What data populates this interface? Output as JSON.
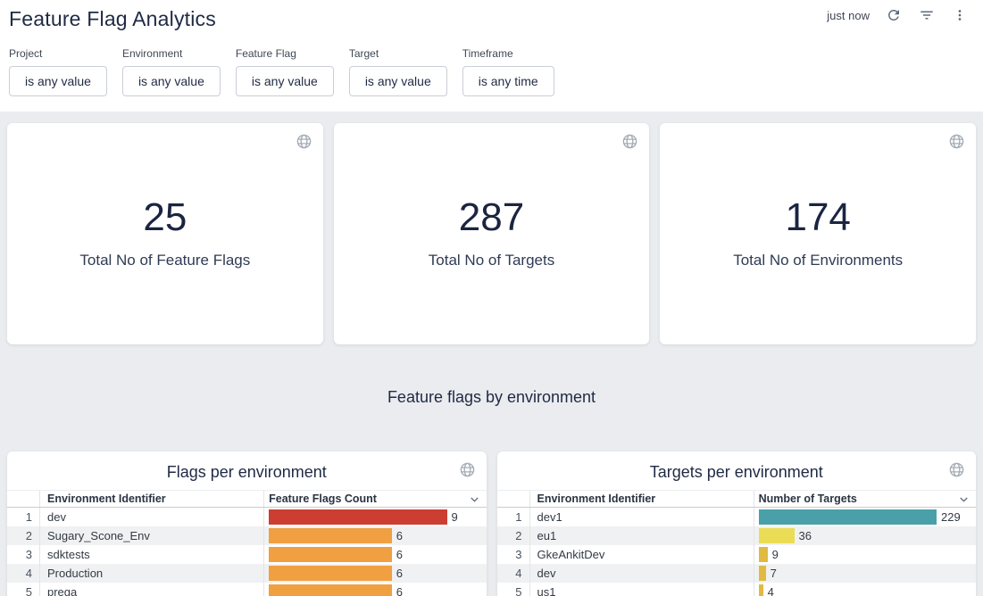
{
  "header": {
    "title": "Feature Flag Analytics",
    "last_refresh": "just now",
    "icons": [
      "refresh-icon",
      "filter-list-icon",
      "kebab-menu-icon"
    ]
  },
  "filters": [
    {
      "label": "Project",
      "value": "is any value"
    },
    {
      "label": "Environment",
      "value": "is any value"
    },
    {
      "label": "Feature Flag",
      "value": "is any value"
    },
    {
      "label": "Target",
      "value": "is any value"
    },
    {
      "label": "Timeframe",
      "value": "is any time"
    }
  ],
  "stats": [
    {
      "value": "25",
      "label": "Total No of Feature Flags"
    },
    {
      "value": "287",
      "label": "Total No of Targets"
    },
    {
      "value": "174",
      "label": "Total No of Environments"
    }
  ],
  "section_title": "Feature flags by environment",
  "tables": [
    {
      "title": "Flags per environment",
      "columns": [
        "Environment Identifier",
        "Feature Flags Count"
      ],
      "max_value": 9,
      "rows": [
        {
          "index": "1",
          "name": "dev",
          "value": "9",
          "pct": 100,
          "color": "#cc3e31"
        },
        {
          "index": "2",
          "name": "Sugary_Scone_Env",
          "value": "6",
          "pct": 69,
          "color": "#f0a041"
        },
        {
          "index": "3",
          "name": "sdktests",
          "value": "6",
          "pct": 69,
          "color": "#f0a041"
        },
        {
          "index": "4",
          "name": "Production",
          "value": "6",
          "pct": 69,
          "color": "#f0a041"
        },
        {
          "index": "5",
          "name": "prega",
          "value": "6",
          "pct": 69,
          "color": "#f0a041"
        }
      ]
    },
    {
      "title": "Targets per environment",
      "columns": [
        "Environment Identifier",
        "Number of Targets"
      ],
      "max_value": 229,
      "rows": [
        {
          "index": "1",
          "name": "dev1",
          "value": "229",
          "pct": 100,
          "color": "#4aa0a8"
        },
        {
          "index": "2",
          "name": "eu1",
          "value": "36",
          "pct": 20,
          "color": "#ebdc55"
        },
        {
          "index": "3",
          "name": "GkeAnkitDev",
          "value": "9",
          "pct": 5,
          "color": "#e0ba41"
        },
        {
          "index": "4",
          "name": "dev",
          "value": "7",
          "pct": 4,
          "color": "#e0ba41"
        },
        {
          "index": "5",
          "name": "us1",
          "value": "4",
          "pct": 2.5,
          "color": "#e0ba41"
        }
      ]
    }
  ],
  "chart_data": [
    {
      "type": "bar",
      "title": "Flags per environment",
      "categories": [
        "dev",
        "Sugary_Scone_Env",
        "sdktests",
        "Production",
        "prega"
      ],
      "values": [
        9,
        6,
        6,
        6,
        6
      ],
      "xlabel": "Feature Flags Count",
      "ylabel": "Environment Identifier"
    },
    {
      "type": "bar",
      "title": "Targets per environment",
      "categories": [
        "dev1",
        "eu1",
        "GkeAnkitDev",
        "dev",
        "us1"
      ],
      "values": [
        229,
        36,
        9,
        7,
        4
      ],
      "xlabel": "Number of Targets",
      "ylabel": "Environment Identifier"
    }
  ],
  "colors": {
    "page_background": "#eaecef",
    "card_background": "#ffffff",
    "title_navy": "#1f2a44",
    "icon_gray": "#5f6b7c",
    "globe_gray": "#a4acb5",
    "bar_red": "#cc3e31",
    "bar_orange": "#f0a041",
    "bar_teal": "#4aa0a8",
    "bar_yellow": "#ebdc55",
    "bar_amber": "#e0ba41"
  }
}
